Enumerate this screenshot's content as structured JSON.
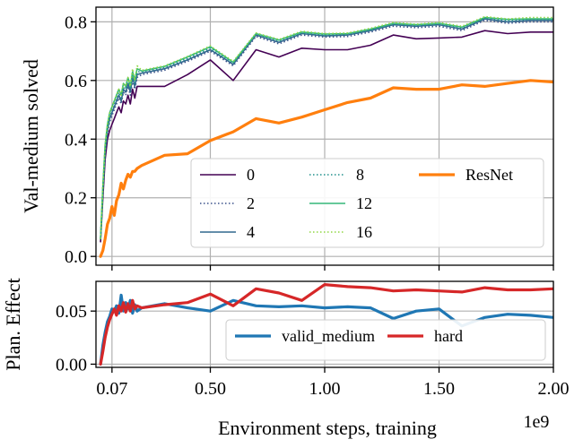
{
  "chart_data": [
    {
      "type": "line",
      "xlabel": "",
      "ylabel": "Val-medium solved",
      "xlim": [
        0.0,
        2.0
      ],
      "ylim": [
        -0.03,
        0.85
      ],
      "grid": true,
      "legend_position": "lower-right",
      "legend_columns": 3,
      "x_ticks": [
        {
          "value": 0.07,
          "label": ""
        },
        {
          "value": 0.5,
          "label": ""
        },
        {
          "value": 1.0,
          "label": ""
        },
        {
          "value": 1.5,
          "label": ""
        },
        {
          "value": 2.0,
          "label": ""
        }
      ],
      "y_ticks": [
        {
          "value": 0.0,
          "label": "0.0"
        },
        {
          "value": 0.2,
          "label": "0.2"
        },
        {
          "value": 0.4,
          "label": "0.4"
        },
        {
          "value": 0.6,
          "label": "0.6"
        },
        {
          "value": 0.8,
          "label": "0.8"
        }
      ],
      "x_shared": [
        0.02,
        0.03,
        0.04,
        0.05,
        0.06,
        0.07,
        0.08,
        0.09,
        0.1,
        0.11,
        0.12,
        0.13,
        0.14,
        0.15,
        0.16,
        0.17,
        0.18,
        0.2,
        0.3,
        0.4,
        0.5,
        0.6,
        0.7,
        0.8,
        0.9,
        1.0,
        1.1,
        1.2,
        1.3,
        1.4,
        1.5,
        1.6,
        1.7,
        1.8,
        1.9,
        2.0
      ],
      "series": [
        {
          "name": "0",
          "color": "#440154",
          "dash": "solid",
          "width": 1.6,
          "values": [
            0.05,
            0.2,
            0.33,
            0.4,
            0.43,
            0.45,
            0.47,
            0.49,
            0.51,
            0.49,
            0.53,
            0.52,
            0.55,
            0.52,
            0.57,
            0.54,
            0.58,
            0.58,
            0.58,
            0.62,
            0.67,
            0.6,
            0.705,
            0.68,
            0.71,
            0.705,
            0.705,
            0.72,
            0.755,
            0.742,
            0.745,
            0.748,
            0.77,
            0.76,
            0.765,
            0.765
          ]
        },
        {
          "name": "2",
          "color": "#3b528b",
          "dash": "dotted",
          "width": 1.6,
          "values": [
            0.06,
            0.22,
            0.35,
            0.42,
            0.46,
            0.48,
            0.5,
            0.52,
            0.54,
            0.52,
            0.56,
            0.55,
            0.58,
            0.55,
            0.6,
            0.57,
            0.61,
            0.62,
            0.635,
            0.665,
            0.7,
            0.65,
            0.75,
            0.725,
            0.755,
            0.748,
            0.75,
            0.765,
            0.785,
            0.78,
            0.785,
            0.77,
            0.805,
            0.795,
            0.8,
            0.8
          ]
        },
        {
          "name": "4",
          "color": "#31688e",
          "dash": "solid",
          "width": 1.6,
          "values": [
            0.06,
            0.23,
            0.36,
            0.43,
            0.47,
            0.49,
            0.51,
            0.53,
            0.55,
            0.53,
            0.57,
            0.56,
            0.59,
            0.56,
            0.61,
            0.58,
            0.62,
            0.625,
            0.64,
            0.67,
            0.705,
            0.655,
            0.755,
            0.73,
            0.76,
            0.752,
            0.755,
            0.77,
            0.79,
            0.785,
            0.79,
            0.775,
            0.81,
            0.8,
            0.805,
            0.805
          ]
        },
        {
          "name": "8",
          "color": "#21918c",
          "dash": "dotted",
          "width": 1.6,
          "values": [
            0.06,
            0.24,
            0.37,
            0.44,
            0.48,
            0.5,
            0.52,
            0.54,
            0.56,
            0.54,
            0.58,
            0.57,
            0.6,
            0.57,
            0.62,
            0.59,
            0.63,
            0.63,
            0.645,
            0.675,
            0.71,
            0.66,
            0.758,
            0.735,
            0.762,
            0.755,
            0.758,
            0.772,
            0.792,
            0.788,
            0.792,
            0.78,
            0.812,
            0.805,
            0.808,
            0.808
          ]
        },
        {
          "name": "12",
          "color": "#35b779",
          "dash": "solid",
          "width": 1.6,
          "values": [
            0.06,
            0.24,
            0.38,
            0.45,
            0.49,
            0.51,
            0.53,
            0.55,
            0.57,
            0.55,
            0.59,
            0.58,
            0.61,
            0.58,
            0.63,
            0.6,
            0.64,
            0.632,
            0.648,
            0.68,
            0.715,
            0.662,
            0.76,
            0.738,
            0.765,
            0.758,
            0.76,
            0.775,
            0.795,
            0.79,
            0.795,
            0.782,
            0.815,
            0.808,
            0.81,
            0.81
          ]
        },
        {
          "name": "16",
          "color": "#90d743",
          "dash": "dotted",
          "width": 1.6,
          "values": [
            0.06,
            0.24,
            0.38,
            0.45,
            0.49,
            0.51,
            0.53,
            0.55,
            0.57,
            0.55,
            0.59,
            0.58,
            0.61,
            0.58,
            0.64,
            0.6,
            0.65,
            0.635,
            0.65,
            0.682,
            0.718,
            0.665,
            0.762,
            0.74,
            0.768,
            0.76,
            0.762,
            0.778,
            0.798,
            0.792,
            0.798,
            0.785,
            0.818,
            0.81,
            0.815,
            0.815
          ]
        },
        {
          "name": "ResNet",
          "color": "#ff7f0e",
          "dash": "solid",
          "width": 3.2,
          "values": [
            0.0,
            0.02,
            0.06,
            0.11,
            0.13,
            0.17,
            0.14,
            0.19,
            0.21,
            0.25,
            0.23,
            0.26,
            0.28,
            0.27,
            0.29,
            0.29,
            0.3,
            0.31,
            0.345,
            0.35,
            0.395,
            0.425,
            0.47,
            0.455,
            0.475,
            0.5,
            0.525,
            0.54,
            0.575,
            0.57,
            0.57,
            0.585,
            0.58,
            0.59,
            0.6,
            0.595
          ]
        }
      ]
    },
    {
      "type": "line",
      "xlabel": "Environment steps, training",
      "x_offset_text": "1e9",
      "ylabel": "Plan. Effect",
      "xlim": [
        0.0,
        2.0
      ],
      "ylim": [
        -0.003,
        0.078
      ],
      "grid": true,
      "legend_position": "lower-right",
      "legend_columns": 2,
      "x_ticks": [
        {
          "value": 0.07,
          "label": "0.07"
        },
        {
          "value": 0.5,
          "label": "0.50"
        },
        {
          "value": 1.0,
          "label": "1.00"
        },
        {
          "value": 1.5,
          "label": "1.50"
        },
        {
          "value": 2.0,
          "label": "2.00"
        }
      ],
      "y_ticks": [
        {
          "value": 0.0,
          "label": "0.00"
        },
        {
          "value": 0.05,
          "label": "0.05"
        }
      ],
      "x_shared": [
        0.02,
        0.03,
        0.04,
        0.05,
        0.06,
        0.07,
        0.08,
        0.09,
        0.1,
        0.11,
        0.12,
        0.13,
        0.14,
        0.15,
        0.16,
        0.17,
        0.18,
        0.2,
        0.3,
        0.4,
        0.5,
        0.6,
        0.7,
        0.8,
        0.9,
        1.0,
        1.1,
        1.2,
        1.3,
        1.4,
        1.5,
        1.6,
        1.7,
        1.8,
        1.9,
        2.0
      ],
      "series": [
        {
          "name": "valid_medium",
          "color": "#1f77b4",
          "dash": "solid",
          "width": 3.2,
          "values": [
            0.0,
            0.018,
            0.03,
            0.04,
            0.045,
            0.052,
            0.05,
            0.055,
            0.048,
            0.065,
            0.05,
            0.058,
            0.052,
            0.06,
            0.048,
            0.056,
            0.05,
            0.053,
            0.057,
            0.053,
            0.05,
            0.06,
            0.055,
            0.054,
            0.055,
            0.053,
            0.054,
            0.053,
            0.043,
            0.05,
            0.052,
            0.036,
            0.044,
            0.047,
            0.046,
            0.044
          ]
        },
        {
          "name": "hard",
          "color": "#d62728",
          "dash": "solid",
          "width": 3.2,
          "values": [
            0.0,
            0.012,
            0.025,
            0.035,
            0.042,
            0.047,
            0.052,
            0.046,
            0.055,
            0.05,
            0.058,
            0.049,
            0.057,
            0.05,
            0.06,
            0.052,
            0.055,
            0.053,
            0.056,
            0.058,
            0.066,
            0.055,
            0.071,
            0.067,
            0.06,
            0.075,
            0.073,
            0.072,
            0.069,
            0.07,
            0.069,
            0.068,
            0.072,
            0.07,
            0.07,
            0.071
          ]
        }
      ]
    }
  ]
}
